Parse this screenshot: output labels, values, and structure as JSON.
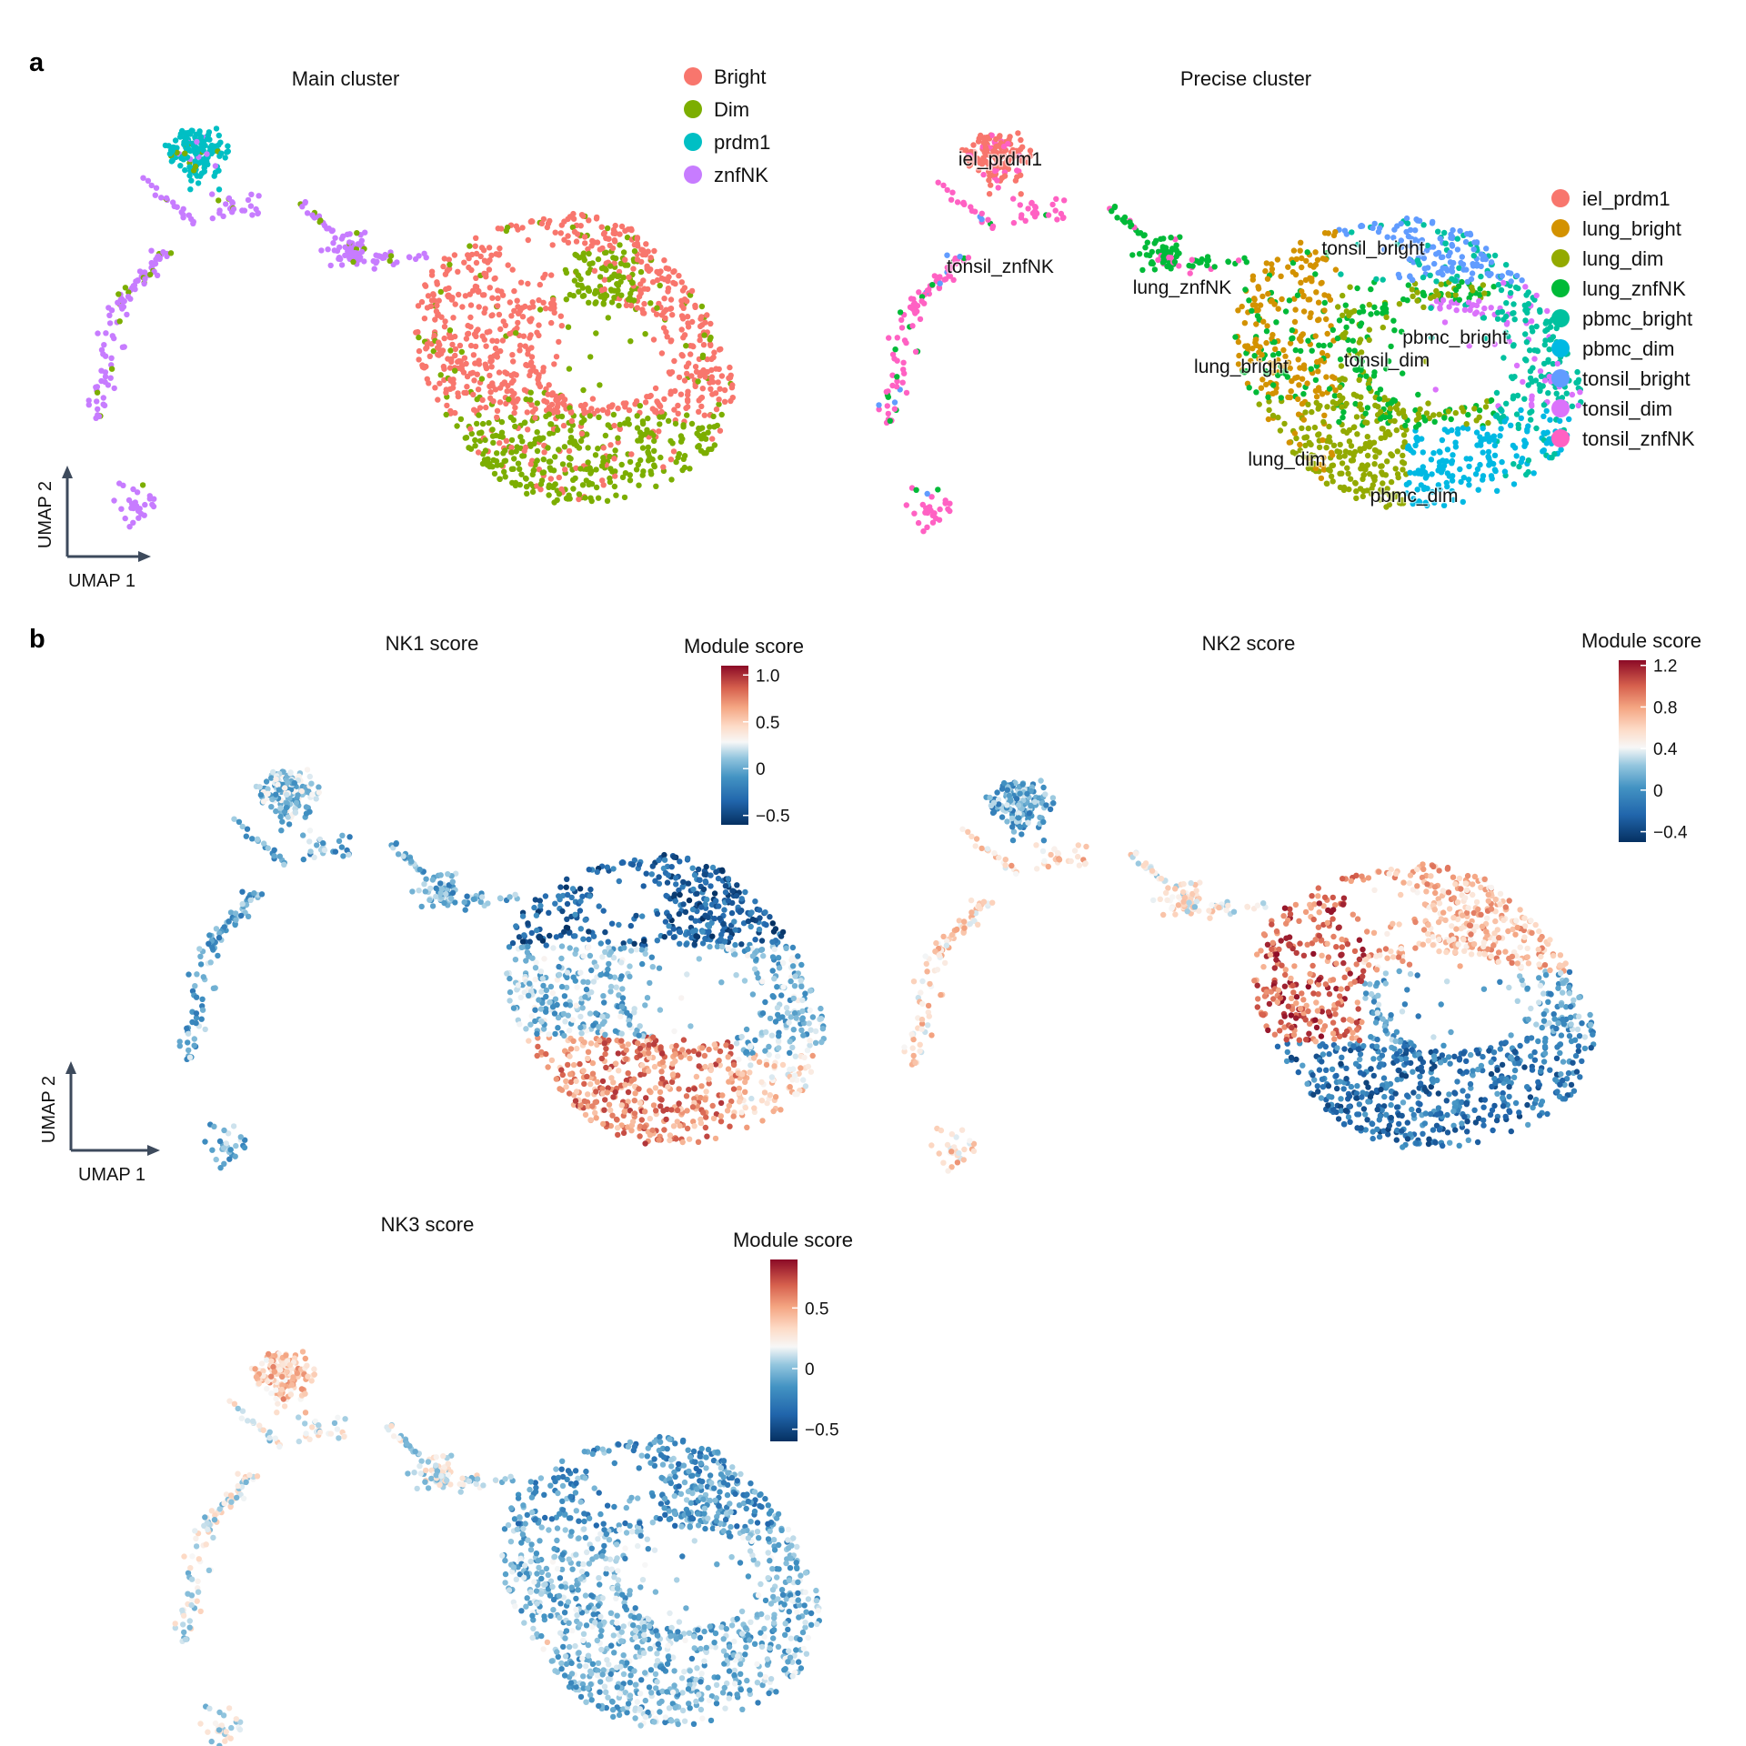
{
  "panel_a_label": "a",
  "panel_b_label": "b",
  "axis_x_label": "UMAP 1",
  "axis_y_label": "UMAP 2",
  "chart_data": [
    {
      "type": "scatter",
      "title": "Main cluster",
      "legend_placement": "top-right",
      "series": [
        {
          "name": "Bright",
          "color": "#F8766D"
        },
        {
          "name": "Dim",
          "color": "#7CAE00"
        },
        {
          "name": "prdm1",
          "color": "#00BFC4"
        },
        {
          "name": "znfNK",
          "color": "#C77CFF"
        }
      ]
    },
    {
      "type": "scatter",
      "title": "Precise cluster",
      "legend_placement": "right",
      "series": [
        {
          "name": "iel_prdm1",
          "color": "#F8766D"
        },
        {
          "name": "lung_bright",
          "color": "#D39200"
        },
        {
          "name": "lung_dim",
          "color": "#93AA00"
        },
        {
          "name": "lung_znfNK",
          "color": "#00BA38"
        },
        {
          "name": "pbmc_bright",
          "color": "#00C19F"
        },
        {
          "name": "pbmc_dim",
          "color": "#00B9E3"
        },
        {
          "name": "tonsil_bright",
          "color": "#619CFF"
        },
        {
          "name": "tonsil_dim",
          "color": "#DB72FB"
        },
        {
          "name": "tonsil_znfNK",
          "color": "#FF61C3"
        }
      ],
      "cluster_labels": [
        "iel_prdm1",
        "tonsil_znfNK",
        "lung_znfNK",
        "tonsil_bright",
        "pbmc_bright",
        "lung_bright",
        "tonsil_dim",
        "lung_dim",
        "pbmc_dim"
      ]
    },
    {
      "type": "scatter",
      "title": "NK1 score",
      "colorbar": {
        "title": "Module score",
        "range": [
          -0.6,
          1.1
        ],
        "ticks": [
          1.0,
          0.5,
          0,
          -0.5
        ],
        "tick_labels": [
          "1.0",
          "0.5",
          "0",
          "−0.5"
        ]
      }
    },
    {
      "type": "scatter",
      "title": "NK2 score",
      "colorbar": {
        "title": "Module score",
        "range": [
          -0.5,
          1.25
        ],
        "ticks": [
          1.2,
          0.8,
          0.4,
          0,
          -0.4
        ],
        "tick_labels": [
          "1.2",
          "0.8",
          "0.4",
          "0",
          "−0.4"
        ]
      }
    },
    {
      "type": "scatter",
      "title": "NK3 score",
      "colorbar": {
        "title": "Module score",
        "range": [
          -0.6,
          0.9
        ],
        "ticks": [
          0.5,
          0,
          -0.5
        ],
        "tick_labels": [
          "0.5",
          "0",
          "−0.5"
        ]
      }
    }
  ]
}
